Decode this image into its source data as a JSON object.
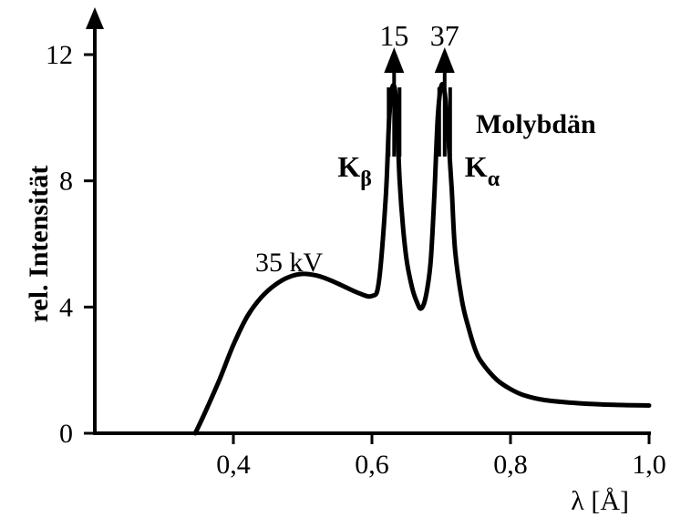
{
  "chart_data": {
    "type": "line",
    "title": "",
    "xlabel": "λ [Å]",
    "ylabel": "rel. Intensität",
    "xlim": [
      0.2,
      1.0
    ],
    "ylim": [
      0,
      13
    ],
    "x_ticks": [
      {
        "value": 0.4,
        "label": "0,4"
      },
      {
        "value": 0.6,
        "label": "0,6"
      },
      {
        "value": 0.8,
        "label": "0,8"
      },
      {
        "value": 1.0,
        "label": "1,0"
      }
    ],
    "y_ticks": [
      {
        "value": 0,
        "label": "0"
      },
      {
        "value": 4,
        "label": "4"
      },
      {
        "value": 8,
        "label": "8"
      },
      {
        "value": 12,
        "label": "12"
      }
    ],
    "grid": false,
    "legend": "none",
    "series": [
      {
        "x": [
          0.345,
          0.36,
          0.38,
          0.4,
          0.42,
          0.44,
          0.46,
          0.48,
          0.5,
          0.52,
          0.54,
          0.56,
          0.58,
          0.6,
          0.61,
          0.62,
          0.625,
          0.63,
          0.635,
          0.64,
          0.645,
          0.65,
          0.655,
          0.66,
          0.665,
          0.67,
          0.675,
          0.68,
          0.685,
          0.69,
          0.695,
          0.7,
          0.705,
          0.71,
          0.715,
          0.72,
          0.73,
          0.74,
          0.75,
          0.76,
          0.78,
          0.8,
          0.82,
          0.85,
          0.9,
          0.95,
          1.0
        ],
        "y": [
          0.0,
          0.7,
          1.7,
          2.8,
          3.7,
          4.3,
          4.7,
          4.95,
          5.05,
          5.0,
          4.85,
          4.65,
          4.45,
          4.35,
          4.8,
          7.5,
          10.0,
          11.0,
          10.5,
          8.0,
          6.5,
          5.5,
          4.9,
          4.45,
          4.15,
          3.95,
          4.1,
          4.6,
          5.5,
          7.5,
          10.0,
          11.0,
          10.8,
          9.5,
          7.8,
          5.8,
          4.2,
          3.3,
          2.6,
          2.2,
          1.7,
          1.4,
          1.2,
          1.05,
          0.95,
          0.9,
          0.88
        ]
      }
    ],
    "peaks": [
      {
        "name": "K_β",
        "main": "K",
        "sub": "β",
        "x": 0.632,
        "value_label": "15"
      },
      {
        "name": "K_α",
        "main": "K",
        "sub": "α",
        "x": 0.705,
        "value_label": "37"
      }
    ],
    "annotations": {
      "voltage": "35 kV",
      "element": "Molybdän"
    },
    "colors": {
      "line": "#000000",
      "axes": "#000000",
      "background": "#ffffff"
    }
  }
}
